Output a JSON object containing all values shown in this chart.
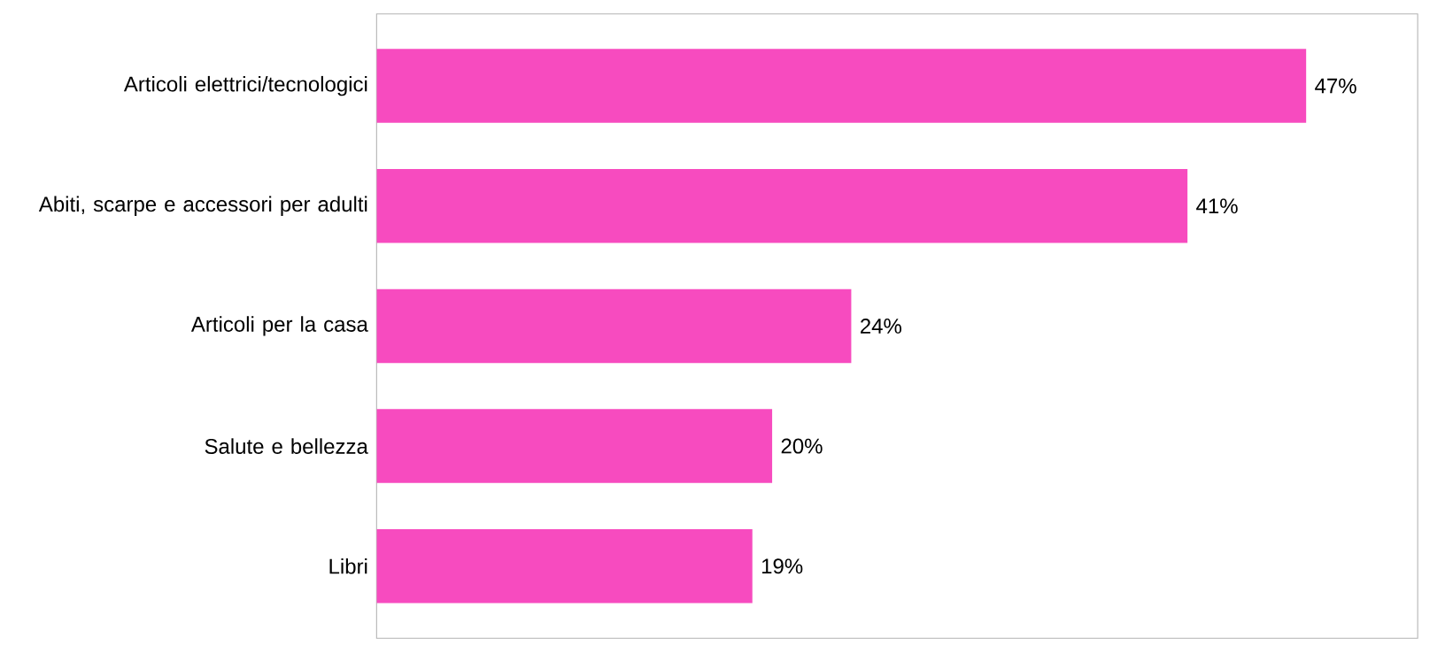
{
  "chart_data": {
    "type": "bar",
    "orientation": "horizontal",
    "categories": [
      "Articoli elettrici/tecnologici",
      "Abiti, scarpe e accessori per adulti",
      "Articoli per la casa",
      "Salute e bellezza",
      "Libri"
    ],
    "values": [
      47,
      41,
      24,
      20,
      19
    ],
    "value_labels": [
      "47%",
      "41%",
      "24%",
      "20%",
      "19%"
    ],
    "color": "#f74bbf"
  }
}
